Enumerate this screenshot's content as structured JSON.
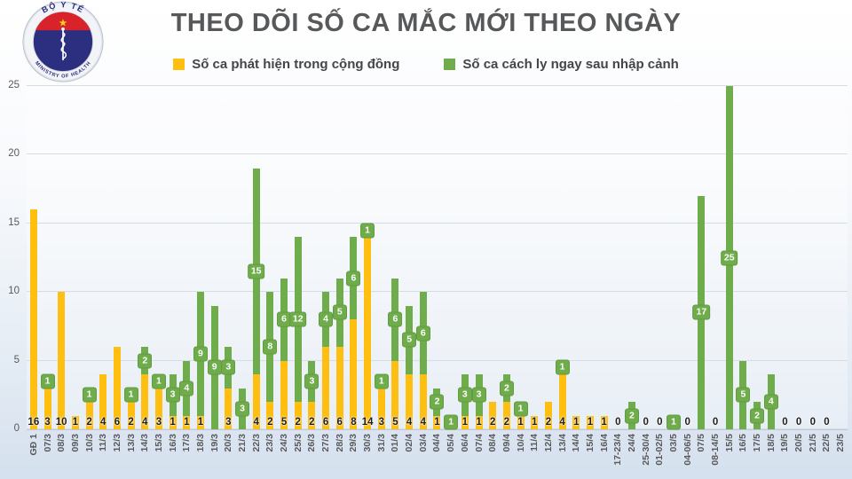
{
  "header": {
    "title": "THEO DÕI SỐ CA MẮC MỚI THEO NGÀY",
    "logo": {
      "top_text": "BỘ Y TẾ",
      "bottom_text": "MINISTRY OF HEALTH"
    }
  },
  "legend": {
    "community": "Số ca phát hiện trong cộng đồng",
    "quarantine": "Số ca cách ly ngay sau nhập cảnh"
  },
  "colors": {
    "community": "#FEBF10",
    "quarantine": "#6FAC4B",
    "label_box": "#6FAC4B",
    "title_text": "#57585A",
    "axis_text": "#595959",
    "value_text": "#1F1F1F",
    "gridline": "#D7DBE2"
  },
  "chart_data": {
    "type": "bar",
    "stacked": true,
    "title": "THEO DÕI SỐ CA MẮC MỚI THEO NGÀY",
    "xlabel": "",
    "ylabel": "",
    "ylim": [
      0,
      25
    ],
    "yticks": [
      0,
      5,
      10,
      15,
      20,
      25
    ],
    "grid": true,
    "legend_position": "top",
    "categories": [
      "GĐ 1",
      "07/3",
      "08/3",
      "09/3",
      "10/3",
      "11/3",
      "12/3",
      "13/3",
      "14/3",
      "15/3",
      "16/3",
      "17/3",
      "18/3",
      "19/3",
      "20/3",
      "21/3",
      "22/3",
      "23/3",
      "24/3",
      "25/3",
      "26/3",
      "27/3",
      "28/3",
      "29/3",
      "30/3",
      "31/3",
      "01/4",
      "02/4",
      "03/4",
      "04/4",
      "05/4",
      "06/4",
      "07/4",
      "08/4",
      "09/4",
      "10/4",
      "11/4",
      "12/4",
      "13/4",
      "14/4",
      "15/4",
      "16/4",
      "17-23/4",
      "24/4",
      "25-30/4",
      "01-02/5",
      "03/5",
      "04-06/5",
      "07/5",
      "08-14/5",
      "15/5",
      "16/5",
      "17/5",
      "18/5",
      "19/5",
      "20/5",
      "21/5",
      "22/5",
      "23/5"
    ],
    "series": [
      {
        "name": "Số ca phát hiện trong cộng đồng",
        "color": "#FEBF10",
        "values": [
          16,
          3,
          10,
          1,
          2,
          4,
          6,
          2,
          4,
          3,
          1,
          1,
          1,
          0,
          3,
          0,
          4,
          2,
          5,
          2,
          2,
          6,
          6,
          8,
          14,
          3,
          5,
          4,
          4,
          1,
          0,
          1,
          1,
          2,
          2,
          1,
          1,
          2,
          4,
          1,
          1,
          1,
          0,
          0,
          0,
          0,
          0,
          0,
          0,
          0,
          0,
          0,
          0,
          0,
          0,
          0,
          0,
          0,
          0
        ]
      },
      {
        "name": "Số ca cách ly ngay sau nhập cảnh",
        "color": "#6FAC4B",
        "values": [
          0,
          1,
          0,
          0,
          1,
          0,
          0,
          1,
          2,
          1,
          3,
          4,
          9,
          9,
          3,
          3,
          15,
          8,
          6,
          12,
          3,
          4,
          5,
          6,
          1,
          1,
          6,
          5,
          6,
          2,
          1,
          3,
          3,
          0,
          2,
          1,
          0,
          0,
          1,
          0,
          0,
          0,
          0,
          2,
          0,
          0,
          1,
          0,
          17,
          0,
          25,
          5,
          2,
          4,
          0,
          0,
          0,
          0,
          0
        ]
      }
    ],
    "bottom_value_labels": [
      "16",
      "3",
      "10",
      "1",
      "2",
      "4",
      "6",
      "2",
      "4",
      "3",
      "1",
      "1",
      "1",
      "",
      "3",
      "",
      "4",
      "2",
      "5",
      "2",
      "2",
      "6",
      "6",
      "8",
      "14",
      "3",
      "5",
      "4",
      "4",
      "1",
      "",
      "1",
      "1",
      "2",
      "2",
      "1",
      "1",
      "2",
      "4",
      "1",
      "1",
      "1",
      "0",
      "",
      "0",
      "0",
      "",
      "0",
      "",
      "0",
      "",
      "",
      "",
      "",
      "0",
      "0",
      "0",
      "0",
      ""
    ]
  }
}
